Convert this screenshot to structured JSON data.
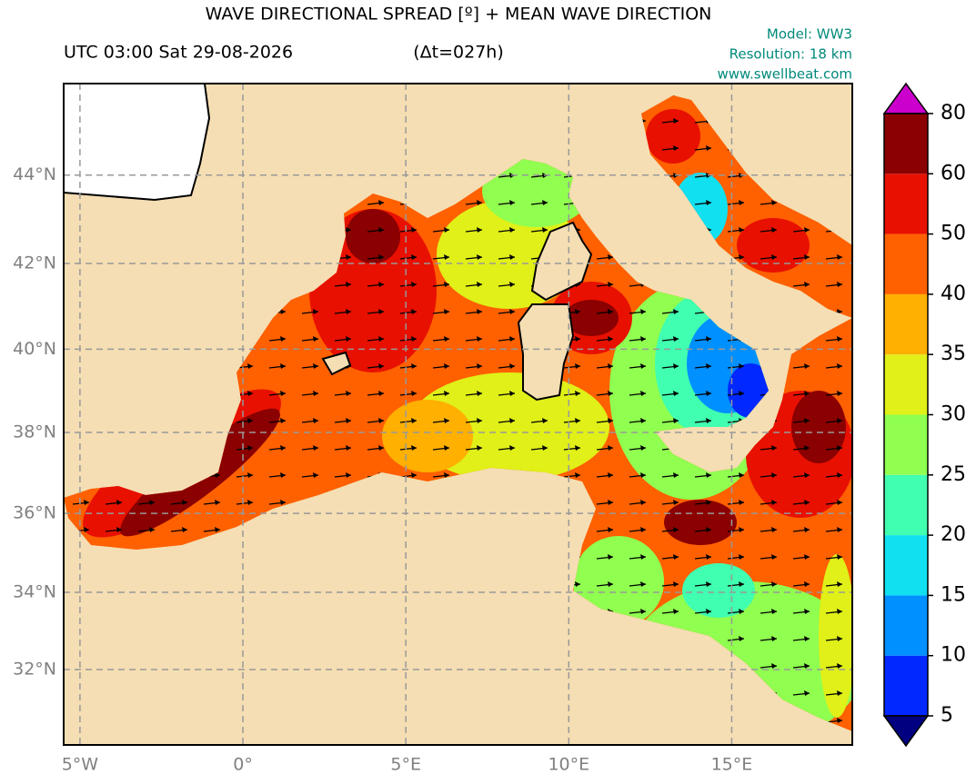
{
  "title": "WAVE DIRECTIONAL SPREAD [º] + MEAN WAVE DIRECTION",
  "time": "UTC 03:00 Sat 29-08-2026",
  "delta": "(Δt=027h)",
  "model": "Model: WW3",
  "resolution": "Resolution: 18 km",
  "website": "www.swellbeat.com",
  "map": {
    "xlim": [
      -5.5,
      18.7
    ],
    "ylim": [
      30.0,
      46.0
    ],
    "projection": "mercator",
    "grid": true,
    "xticks": [
      {
        "value": -5,
        "label": "5°W"
      },
      {
        "value": 0,
        "label": "0°"
      },
      {
        "value": 5,
        "label": "5°E"
      },
      {
        "value": 10,
        "label": "10°E"
      },
      {
        "value": 15,
        "label": "15°E"
      }
    ],
    "yticks": [
      {
        "value": 32,
        "label": "32°N"
      },
      {
        "value": 34,
        "label": "34°N"
      },
      {
        "value": 36,
        "label": "36°N"
      },
      {
        "value": 38,
        "label": "38°N"
      },
      {
        "value": 40,
        "label": "40°N"
      },
      {
        "value": 42,
        "label": "42°N"
      },
      {
        "value": 44,
        "label": "44°N"
      }
    ],
    "land_color": "#f5deb3"
  },
  "colorbar": {
    "levels": [
      5,
      10,
      15,
      20,
      25,
      30,
      35,
      40,
      50,
      60,
      80
    ],
    "colors": [
      "#0028ff",
      "#0090ff",
      "#10e0f0",
      "#40ffb0",
      "#90ff50",
      "#e0f018",
      "#ffb000",
      "#ff6000",
      "#e81000",
      "#8b0000"
    ],
    "under_color": "#000080",
    "over_color": "#cc00cc"
  }
}
